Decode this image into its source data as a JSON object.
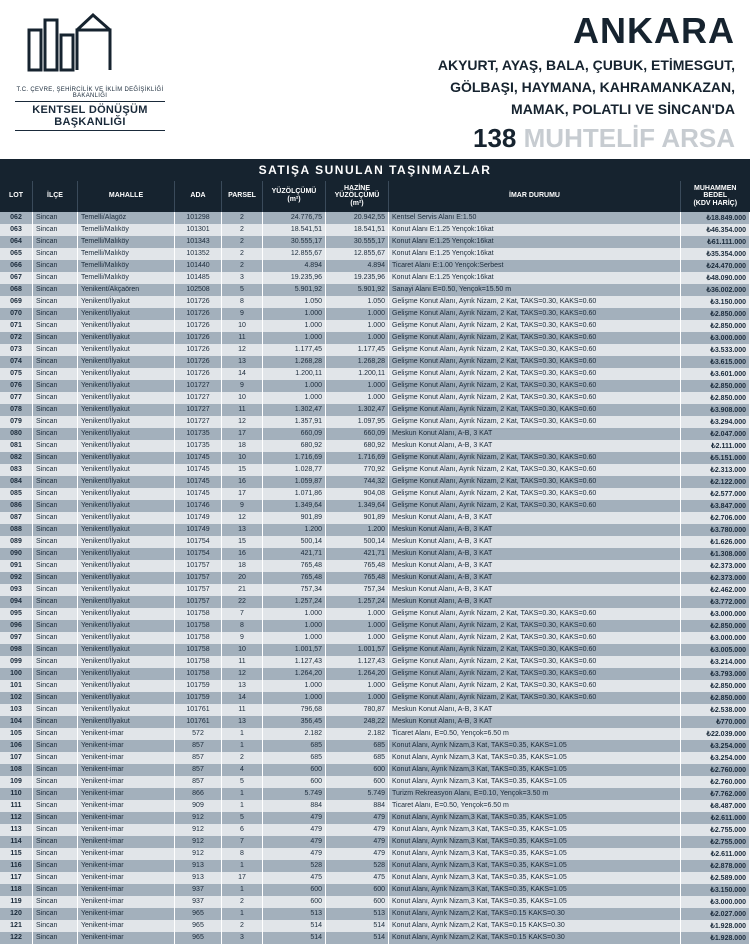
{
  "brand_caption": "T.C. ÇEVRE, ŞEHİRCİLİK VE İKLİM DEĞİŞİKLİĞİ BAKANLIĞI",
  "brand_name": "KENTSEL DÖNÜŞÜM BAŞKANLIĞI",
  "city": "ANKARA",
  "districts_line1": "AKYURT, AYAŞ, BALA, ÇUBUK, ETİMESGUT,",
  "districts_line2": "GÖLBAŞI, HAYMANA, KAHRAMANKAZAN,",
  "districts_line3": "MAMAK, POLATLI VE SİNCAN'DA",
  "count_num": "138",
  "count_text": "MUHTELİF ARSA",
  "banner": "SATIŞA SUNULAN TAŞINMAZLAR",
  "columns": [
    "LOT",
    "İLÇE",
    "MAHALLE",
    "ADA",
    "PARSEL",
    "YÜZÖLÇÜMÜ (m²)",
    "HAZİNE YÜZÖLÇÜMÜ (m²)",
    "İMAR DURUMU",
    "MUHAMMEN BEDEL (KDV HARİÇ)"
  ],
  "rows": [
    [
      "062",
      "Sincan",
      "Temelli/Alagöz",
      "101298",
      "2",
      "24.776,75",
      "20.942,55",
      "Kentsel Servis Alanı E:1.50",
      "₺18.849.000"
    ],
    [
      "063",
      "Sincan",
      "Temelli/Malıköy",
      "101301",
      "2",
      "18.541,51",
      "18.541,51",
      "Konut Alanı E:1.25 Yençok:16kat",
      "₺46.354.000"
    ],
    [
      "064",
      "Sincan",
      "Temelli/Malıköy",
      "101343",
      "2",
      "30.555,17",
      "30.555,17",
      "Konut Alanı E:1.25 Yençok:16kat",
      "₺61.111.000"
    ],
    [
      "065",
      "Sincan",
      "Temelli/Malıköy",
      "101352",
      "2",
      "12.855,67",
      "12.855,67",
      "Konut Alanı E:1.25 Yençok:16kat",
      "₺35.354.000"
    ],
    [
      "066",
      "Sincan",
      "Temelli/Malıköy",
      "101440",
      "2",
      "4.894",
      "4.894",
      "Ticaret Alanı E:1.00 Yençok:Serbest",
      "₺24.470.000"
    ],
    [
      "067",
      "Sincan",
      "Temelli/Malıköy",
      "101485",
      "3",
      "19.235,96",
      "19.235,96",
      "Konut Alanı E:1.25 Yençok:16kat",
      "₺48.090.000"
    ],
    [
      "068",
      "Sincan",
      "Yenikent/Akçaören",
      "102508",
      "5",
      "5.901,92",
      "5.901,92",
      "Sanayi Alanı E=0.50, Yençok=15.50 m",
      "₺36.002.000"
    ],
    [
      "069",
      "Sincan",
      "Yenikent/İlyakut",
      "101726",
      "8",
      "1.050",
      "1.050",
      "Gelişme Konut Alanı, Ayrık Nizam, 2 Kat, TAKS=0.30, KAKS=0.60",
      "₺3.150.000"
    ],
    [
      "070",
      "Sincan",
      "Yenikent/İlyakut",
      "101726",
      "9",
      "1.000",
      "1.000",
      "Gelişme Konut Alanı, Ayrık Nizam, 2 Kat, TAKS=0.30, KAKS=0.60",
      "₺2.850.000"
    ],
    [
      "071",
      "Sincan",
      "Yenikent/İlyakut",
      "101726",
      "10",
      "1.000",
      "1.000",
      "Gelişme Konut Alanı, Ayrık Nizam, 2 Kat, TAKS=0.30, KAKS=0.60",
      "₺2.850.000"
    ],
    [
      "072",
      "Sincan",
      "Yenikent/İlyakut",
      "101726",
      "11",
      "1.000",
      "1.000",
      "Gelişme Konut Alanı, Ayrık Nizam, 2 Kat, TAKS=0.30, KAKS=0.60",
      "₺3.000.000"
    ],
    [
      "073",
      "Sincan",
      "Yenikent/İlyakut",
      "101726",
      "12",
      "1.177,45",
      "1.177,45",
      "Gelişme Konut Alanı, Ayrık Nizam, 2 Kat, TAKS=0.30, KAKS=0.60",
      "₺3.533.000"
    ],
    [
      "074",
      "Sincan",
      "Yenikent/İlyakut",
      "101726",
      "13",
      "1.268,28",
      "1.268,28",
      "Gelişme Konut Alanı, Ayrık Nizam, 2 Kat, TAKS=0.30, KAKS=0.60",
      "₺3.615.000"
    ],
    [
      "075",
      "Sincan",
      "Yenikent/İlyakut",
      "101726",
      "14",
      "1.200,11",
      "1.200,11",
      "Gelişme Konut Alanı, Ayrık Nizam, 2 Kat, TAKS=0.30, KAKS=0.60",
      "₺3.601.000"
    ],
    [
      "076",
      "Sincan",
      "Yenikent/İlyakut",
      "101727",
      "9",
      "1.000",
      "1.000",
      "Gelişme Konut Alanı, Ayrık Nizam, 2 Kat, TAKS=0.30, KAKS=0.60",
      "₺2.850.000"
    ],
    [
      "077",
      "Sincan",
      "Yenikent/İlyakut",
      "101727",
      "10",
      "1.000",
      "1.000",
      "Gelişme Konut Alanı, Ayrık Nizam, 2 Kat, TAKS=0.30, KAKS=0.60",
      "₺2.850.000"
    ],
    [
      "078",
      "Sincan",
      "Yenikent/İlyakut",
      "101727",
      "11",
      "1.302,47",
      "1.302,47",
      "Gelişme Konut Alanı, Ayrık Nizam, 2 Kat, TAKS=0.30, KAKS=0.60",
      "₺3.908.000"
    ],
    [
      "079",
      "Sincan",
      "Yenikent/İlyakut",
      "101727",
      "12",
      "1.357,91",
      "1.097,95",
      "Gelişme Konut Alanı, Ayrık Nizam, 2 Kat, TAKS=0.30, KAKS=0.60",
      "₺3.294.000"
    ],
    [
      "080",
      "Sincan",
      "Yenikent/İlyakut",
      "101735",
      "17",
      "660,09",
      "660,09",
      "Meskun Konut Alanı, A-B, 3 KAT",
      "₺2.047.000"
    ],
    [
      "081",
      "Sincan",
      "Yenikent/İlyakut",
      "101735",
      "18",
      "680,92",
      "680,92",
      "Meskun Konut Alanı, A-B, 3 KAT",
      "₺2.111.000"
    ],
    [
      "082",
      "Sincan",
      "Yenikent/İlyakut",
      "101745",
      "10",
      "1.716,69",
      "1.716,69",
      "Gelişme Konut Alanı, Ayrık Nizam, 2 Kat, TAKS=0.30, KAKS=0.60",
      "₺5.151.000"
    ],
    [
      "083",
      "Sincan",
      "Yenikent/İlyakut",
      "101745",
      "15",
      "1.028,77",
      "770,92",
      "Gelişme Konut Alanı, Ayrık Nizam, 2 Kat, TAKS=0.30, KAKS=0.60",
      "₺2.313.000"
    ],
    [
      "084",
      "Sincan",
      "Yenikent/İlyakut",
      "101745",
      "16",
      "1.059,87",
      "744,32",
      "Gelişme Konut Alanı, Ayrık Nizam, 2 Kat, TAKS=0.30, KAKS=0.60",
      "₺2.122.000"
    ],
    [
      "085",
      "Sincan",
      "Yenikent/İlyakut",
      "101745",
      "17",
      "1.071,86",
      "904,08",
      "Gelişme Konut Alanı, Ayrık Nizam, 2 Kat, TAKS=0.30, KAKS=0.60",
      "₺2.577.000"
    ],
    [
      "086",
      "Sincan",
      "Yenikent/İlyakut",
      "101746",
      "9",
      "1.349,64",
      "1.349,64",
      "Gelişme Konut Alanı, Ayrık Nizam, 2 Kat, TAKS=0.30, KAKS=0.60",
      "₺3.847.000"
    ],
    [
      "087",
      "Sincan",
      "Yenikent/İlyakut",
      "101749",
      "12",
      "901,89",
      "901,89",
      "Meskun Konut Alanı, A-B, 3 KAT",
      "₺2.706.000"
    ],
    [
      "088",
      "Sincan",
      "Yenikent/İlyakut",
      "101749",
      "13",
      "1.200",
      "1.200",
      "Meskun Konut Alanı, A-B, 3 KAT",
      "₺3.780.000"
    ],
    [
      "089",
      "Sincan",
      "Yenikent/İlyakut",
      "101754",
      "15",
      "500,14",
      "500,14",
      "Meskun Konut Alanı, A-B, 3 KAT",
      "₺1.626.000"
    ],
    [
      "090",
      "Sincan",
      "Yenikent/İlyakut",
      "101754",
      "16",
      "421,71",
      "421,71",
      "Meskun Konut Alanı, A-B, 3 KAT",
      "₺1.308.000"
    ],
    [
      "091",
      "Sincan",
      "Yenikent/İlyakut",
      "101757",
      "18",
      "765,48",
      "765,48",
      "Meskun Konut Alanı, A-B, 3 KAT",
      "₺2.373.000"
    ],
    [
      "092",
      "Sincan",
      "Yenikent/İlyakut",
      "101757",
      "20",
      "765,48",
      "765,48",
      "Meskun Konut Alanı, A-B, 3 KAT",
      "₺2.373.000"
    ],
    [
      "093",
      "Sincan",
      "Yenikent/İlyakut",
      "101757",
      "21",
      "757,34",
      "757,34",
      "Meskun Konut Alanı, A-B, 3 KAT",
      "₺2.462.000"
    ],
    [
      "094",
      "Sincan",
      "Yenikent/İlyakut",
      "101757",
      "22",
      "1.257,24",
      "1.257,24",
      "Meskun Konut Alanı, A-B, 3 KAT",
      "₺3.772.000"
    ],
    [
      "095",
      "Sincan",
      "Yenikent/İlyakut",
      "101758",
      "7",
      "1.000",
      "1.000",
      "Gelişme Konut Alanı, Ayrık Nizam, 2 Kat, TAKS=0.30, KAKS=0.60",
      "₺3.000.000"
    ],
    [
      "096",
      "Sincan",
      "Yenikent/İlyakut",
      "101758",
      "8",
      "1.000",
      "1.000",
      "Gelişme Konut Alanı, Ayrık Nizam, 2 Kat, TAKS=0.30, KAKS=0.60",
      "₺2.850.000"
    ],
    [
      "097",
      "Sincan",
      "Yenikent/İlyakut",
      "101758",
      "9",
      "1.000",
      "1.000",
      "Gelişme Konut Alanı, Ayrık Nizam, 2 Kat, TAKS=0.30, KAKS=0.60",
      "₺3.000.000"
    ],
    [
      "098",
      "Sincan",
      "Yenikent/İlyakut",
      "101758",
      "10",
      "1.001,57",
      "1.001,57",
      "Gelişme Konut Alanı, Ayrık Nizam, 2 Kat, TAKS=0.30, KAKS=0.60",
      "₺3.005.000"
    ],
    [
      "099",
      "Sincan",
      "Yenikent/İlyakut",
      "101758",
      "11",
      "1.127,43",
      "1.127,43",
      "Gelişme Konut Alanı, Ayrık Nizam, 2 Kat, TAKS=0.30, KAKS=0.60",
      "₺3.214.000"
    ],
    [
      "100",
      "Sincan",
      "Yenikent/İlyakut",
      "101758",
      "12",
      "1.264,20",
      "1.264,20",
      "Gelişme Konut Alanı, Ayrık Nizam, 2 Kat, TAKS=0.30, KAKS=0.60",
      "₺3.793.000"
    ],
    [
      "101",
      "Sincan",
      "Yenikent/İlyakut",
      "101759",
      "13",
      "1.000",
      "1.000",
      "Gelişme Konut Alanı, Ayrık Nizam, 2 Kat, TAKS=0.30, KAKS=0.60",
      "₺2.850.000"
    ],
    [
      "102",
      "Sincan",
      "Yenikent/İlyakut",
      "101759",
      "14",
      "1.000",
      "1.000",
      "Gelişme Konut Alanı, Ayrık Nizam, 2 Kat, TAKS=0.30, KAKS=0.60",
      "₺2.850.000"
    ],
    [
      "103",
      "Sincan",
      "Yenikent/İlyakut",
      "101761",
      "11",
      "796,68",
      "780,87",
      "Meskun Konut Alanı, A-B, 3 KAT",
      "₺2.538.000"
    ],
    [
      "104",
      "Sincan",
      "Yenikent/İlyakut",
      "101761",
      "13",
      "356,45",
      "248,22",
      "Meskun Konut Alanı, A-B, 3 KAT",
      "₺770.000"
    ],
    [
      "105",
      "Sincan",
      "Yenikent-imar",
      "572",
      "1",
      "2.182",
      "2.182",
      "Ticaret Alanı, E=0.50, Yençok=6.50 m",
      "₺22.039.000"
    ],
    [
      "106",
      "Sincan",
      "Yenikent-imar",
      "857",
      "1",
      "685",
      "685",
      "Konut Alanı, Ayrık Nizam,3 Kat, TAKS=0.35, KAKS=1.05",
      "₺3.254.000"
    ],
    [
      "107",
      "Sincan",
      "Yenikent-imar",
      "857",
      "2",
      "685",
      "685",
      "Konut Alanı, Ayrık Nizam,3 Kat, TAKS=0.35, KAKS=1.05",
      "₺3.254.000"
    ],
    [
      "108",
      "Sincan",
      "Yenikent-imar",
      "857",
      "4",
      "600",
      "600",
      "Konut Alanı, Ayrık Nizam,3 Kat, TAKS=0.35, KAKS=1.05",
      "₺2.760.000"
    ],
    [
      "109",
      "Sincan",
      "Yenikent-imar",
      "857",
      "5",
      "600",
      "600",
      "Konut Alanı, Ayrık Nizam,3 Kat, TAKS=0.35, KAKS=1.05",
      "₺2.760.000"
    ],
    [
      "110",
      "Sincan",
      "Yenikent-imar",
      "866",
      "1",
      "5.749",
      "5.749",
      "Turizm Rekreasyon Alanı, E=0.10, Yençok=3.50 m",
      "₺7.762.000"
    ],
    [
      "111",
      "Sincan",
      "Yenikent-imar",
      "909",
      "1",
      "884",
      "884",
      "Ticaret Alanı, E=0.50, Yençok=6.50 m",
      "₺8.487.000"
    ],
    [
      "112",
      "Sincan",
      "Yenikent-imar",
      "912",
      "5",
      "479",
      "479",
      "Konut Alanı, Ayrık Nizam,3 Kat, TAKS=0.35, KAKS=1.05",
      "₺2.611.000"
    ],
    [
      "113",
      "Sincan",
      "Yenikent-imar",
      "912",
      "6",
      "479",
      "479",
      "Konut Alanı, Ayrık Nizam,3 Kat, TAKS=0.35, KAKS=1.05",
      "₺2.755.000"
    ],
    [
      "114",
      "Sincan",
      "Yenikent-imar",
      "912",
      "7",
      "479",
      "479",
      "Konut Alanı, Ayrık Nizam,3 Kat, TAKS=0.35, KAKS=1.05",
      "₺2.755.000"
    ],
    [
      "115",
      "Sincan",
      "Yenikent-imar",
      "912",
      "8",
      "479",
      "479",
      "Konut Alanı, Ayrık Nizam,3 Kat, TAKS=0.35, KAKS=1.05",
      "₺2.611.000"
    ],
    [
      "116",
      "Sincan",
      "Yenikent-imar",
      "913",
      "1",
      "528",
      "528",
      "Konut Alanı, Ayrık Nizam,3 Kat, TAKS=0.35, KAKS=1.05",
      "₺2.878.000"
    ],
    [
      "117",
      "Sincan",
      "Yenikent-imar",
      "913",
      "17",
      "475",
      "475",
      "Konut Alanı, Ayrık Nizam,3 Kat, TAKS=0.35, KAKS=1.05",
      "₺2.589.000"
    ],
    [
      "118",
      "Sincan",
      "Yenikent-imar",
      "937",
      "1",
      "600",
      "600",
      "Konut Alanı, Ayrık Nizam,3 Kat, TAKS=0.35, KAKS=1.05",
      "₺3.150.000"
    ],
    [
      "119",
      "Sincan",
      "Yenikent-imar",
      "937",
      "2",
      "600",
      "600",
      "Konut Alanı, Ayrık Nizam,3 Kat, TAKS=0.35, KAKS=1.05",
      "₺3.000.000"
    ],
    [
      "120",
      "Sincan",
      "Yenikent-imar",
      "965",
      "1",
      "513",
      "513",
      "Konut Alanı, Ayrık Nizam,2 Kat, TAKS=0.15 KAKS=0.30",
      "₺2.027.000"
    ],
    [
      "121",
      "Sincan",
      "Yenikent-imar",
      "965",
      "2",
      "514",
      "514",
      "Konut Alanı, Ayrık Nizam,2 Kat, TAKS=0.15 KAKS=0.30",
      "₺1.928.000"
    ],
    [
      "122",
      "Sincan",
      "Yenikent-imar",
      "965",
      "3",
      "514",
      "514",
      "Konut Alanı, Ayrık Nizam,2 Kat, TAKS=0.15 KAKS=0.30",
      "₺1.928.000"
    ]
  ]
}
